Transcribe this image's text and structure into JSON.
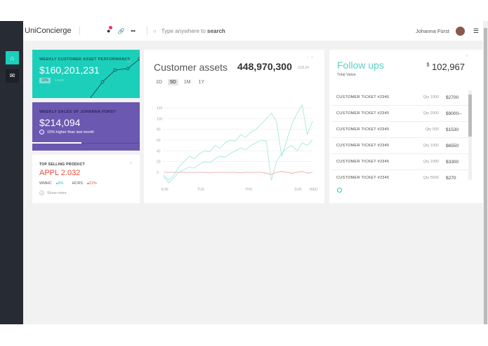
{
  "app": {
    "title": "UniConcierge"
  },
  "header": {
    "search_placeholder": "Type anywhere to ",
    "search_bold": "search",
    "user_name": "Johanna Fürst",
    "icons": [
      "globe-icon",
      "link-icon",
      "grid-icon",
      "search-icon",
      "add-list-icon"
    ]
  },
  "sidebar": {
    "items": [
      {
        "icon": "home-icon",
        "active": true
      },
      {
        "icon": "mail-icon",
        "active": false
      }
    ]
  },
  "cards": {
    "asset_perf": {
      "title": "WEEKLY CUSTOMER ASSET PERFORMANCE",
      "value": "$160,201,231",
      "badge": "10%",
      "badge_text": "Lower",
      "color": "#1ccfbb"
    },
    "sales": {
      "title": "WEEKLY SALES OF JOHANNA FÜRST",
      "value": "$214,094",
      "note": "15% higher than last month",
      "progress": 0.46,
      "color": "#6b58b0"
    },
    "top": {
      "title": "TOP SELLING PRODUCT",
      "value": "APPL 2.032",
      "items": [
        {
          "name": "WMHC",
          "change": "9%",
          "color": "#1ccfbb"
        },
        {
          "name": "HCRS",
          "change": "21%",
          "color": "#e74c3c"
        }
      ],
      "show_more": "Show more"
    }
  },
  "assets": {
    "title": "Customer assets",
    "value": "448,970,300",
    "change": "-318.24",
    "ranges": [
      "1D",
      "5D",
      "1M",
      "1Y"
    ],
    "selected": "5D"
  },
  "followups": {
    "title": "Follow ups",
    "subtitle": "Total Value",
    "currency": "$",
    "total": "102,967",
    "rows": [
      {
        "name": "CUSTOMER TICKET #2345",
        "qty": "Qty 1000",
        "amount": "$2700"
      },
      {
        "name": "CUSTOMER TICKET #2345",
        "qty": "Qty 2000",
        "amount": "$9000--"
      },
      {
        "name": "CUSTOMER TICKET #2345",
        "qty": "Qty 500",
        "amount": "$1530"
      },
      {
        "name": "CUSTOMER TICKET #2345",
        "qty": "Qty 1000",
        "amount": "$6550"
      },
      {
        "name": "CUSTOMER TICKET #2345",
        "qty": "Qty 1000",
        "amount": "$3300"
      },
      {
        "name": "CUSTOMER TICKET #2345",
        "qty": "Qty 5500",
        "amount": "$270"
      }
    ]
  },
  "chart_data": {
    "type": "line",
    "yticks": [
      0,
      20,
      40,
      60,
      80,
      100,
      120
    ],
    "xticks": [
      "SUN",
      "TUE",
      "THU",
      "SUN",
      "WED"
    ],
    "ylim": [
      -20,
      125
    ],
    "grid": true,
    "series": [
      {
        "color": "#a8e8e0",
        "values": [
          -5,
          -15,
          -5,
          10,
          20,
          30,
          25,
          35,
          40,
          38,
          50,
          45,
          55,
          60,
          58,
          70,
          65,
          75,
          80,
          90,
          100,
          110,
          95,
          30,
          60,
          90,
          110,
          125,
          70,
          95
        ]
      },
      {
        "color": "#a8e8e0",
        "values": [
          -8,
          -20,
          -10,
          0,
          5,
          10,
          8,
          15,
          20,
          18,
          25,
          30,
          28,
          35,
          40,
          45,
          42,
          50,
          55,
          60,
          58,
          -15,
          20,
          35,
          45,
          50,
          40,
          55,
          50,
          60
        ]
      },
      {
        "color": "#f5b5b5",
        "values": [
          0,
          0,
          0,
          0,
          0,
          0,
          0,
          0,
          0,
          -1,
          0,
          0,
          0,
          0,
          0,
          -1,
          0,
          0,
          0,
          0,
          -2,
          -4,
          0,
          2,
          0,
          -2,
          0,
          2,
          -2,
          0
        ]
      }
    ]
  }
}
